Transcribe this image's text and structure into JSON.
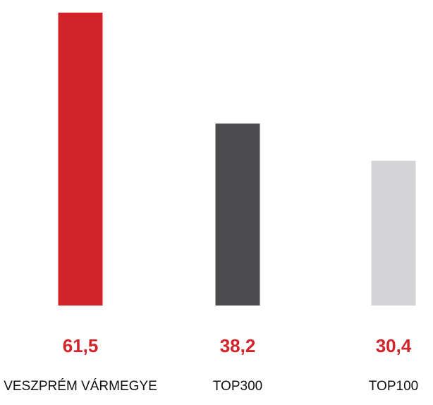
{
  "chart_data": {
    "type": "bar",
    "categories": [
      "VESZPRÉM VÁRMEGYE",
      "TOP300",
      "TOP100"
    ],
    "values": [
      61.5,
      38.2,
      30.4
    ],
    "value_labels": [
      "61,5",
      "38,2",
      "30,4"
    ],
    "colors": [
      "#d3232a",
      "#4b4b4d",
      "#d4d4d6"
    ],
    "value_label_color": "#d3232a"
  }
}
